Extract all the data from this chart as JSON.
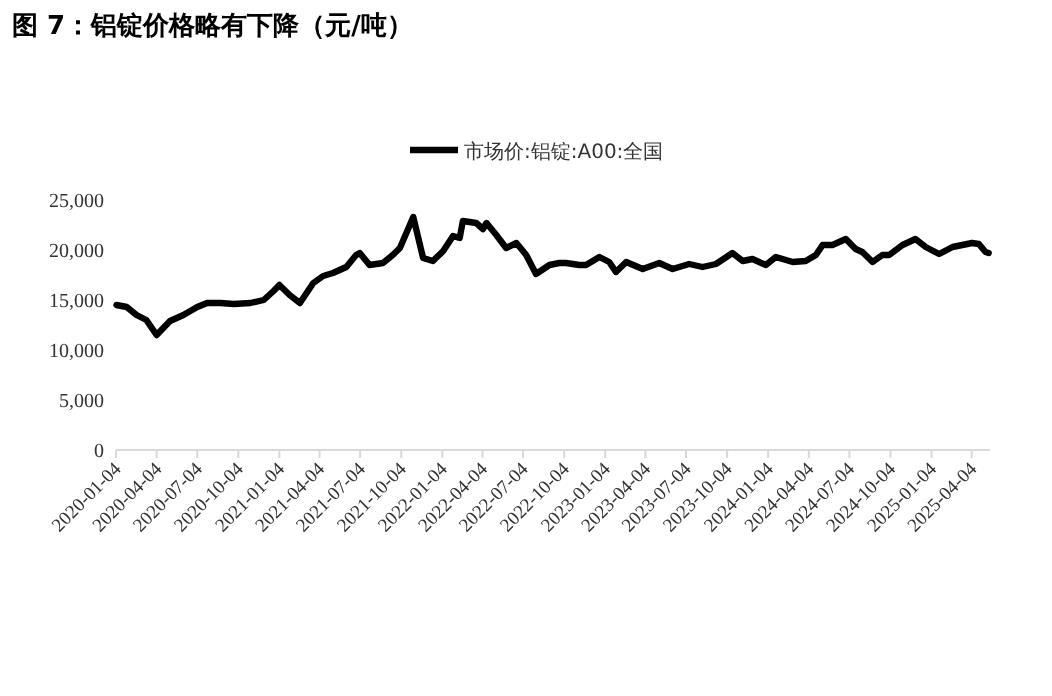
{
  "chart_data": {
    "type": "line",
    "title": "图 7：铝锭价格略有下降（元/吨）",
    "legend": "top",
    "grid": false,
    "marker": "none",
    "line_style": "solid",
    "xlim": [
      "2020-01-04",
      "2025-05-15"
    ],
    "xticks": [
      "2020-01-04",
      "2020-04-04",
      "2020-07-04",
      "2020-10-04",
      "2021-01-04",
      "2021-04-04",
      "2021-07-04",
      "2021-10-04",
      "2022-01-04",
      "2022-04-04",
      "2022-07-04",
      "2022-10-04",
      "2023-01-04",
      "2023-04-04",
      "2023-07-04",
      "2023-10-04",
      "2024-01-04",
      "2024-04-04",
      "2024-07-04",
      "2024-10-04",
      "2025-01-04",
      "2025-04-04"
    ],
    "ylim": [
      0,
      25000
    ],
    "yticks": [
      {
        "value": 0,
        "label": "0"
      },
      {
        "value": 5000,
        "label": "5,000"
      },
      {
        "value": 10000,
        "label": "10,000"
      },
      {
        "value": 15000,
        "label": "15,000"
      },
      {
        "value": 20000,
        "label": "20,000"
      },
      {
        "value": 25000,
        "label": "25,000"
      }
    ],
    "series": [
      {
        "name": "市场价:铝锭:A00:全国",
        "color": "#000000",
        "x": [
          "2020-01-05",
          "2020-01-28",
          "2020-02-19",
          "2020-03-12",
          "2020-04-04",
          "2020-05-04",
          "2020-06-03",
          "2020-07-04",
          "2020-07-26",
          "2020-08-25",
          "2020-09-24",
          "2020-10-31",
          "2020-11-30",
          "2020-12-22",
          "2021-01-04",
          "2021-01-27",
          "2021-02-19",
          "2021-03-06",
          "2021-03-21",
          "2021-04-12",
          "2021-05-04",
          "2021-06-03",
          "2021-06-25",
          "2021-07-03",
          "2021-07-25",
          "2021-08-24",
          "2021-09-15",
          "2021-10-01",
          "2021-10-31",
          "2021-11-22",
          "2021-12-14",
          "2022-01-06",
          "2022-01-28",
          "2022-02-12",
          "2022-02-19",
          "2022-03-21",
          "2022-04-05",
          "2022-04-13",
          "2022-05-05",
          "2022-05-27",
          "2022-06-19",
          "2022-07-11",
          "2022-08-02",
          "2022-09-01",
          "2022-09-23",
          "2022-10-08",
          "2022-11-07",
          "2022-11-22",
          "2022-12-22",
          "2023-01-13",
          "2023-01-28",
          "2023-02-20",
          "2023-03-29",
          "2023-05-05",
          "2023-06-04",
          "2023-07-11",
          "2023-08-10",
          "2023-09-09",
          "2023-10-16",
          "2023-11-08",
          "2023-11-30",
          "2023-12-30",
          "2024-01-21",
          "2024-02-28",
          "2024-03-28",
          "2024-04-20",
          "2024-05-05",
          "2024-05-27",
          "2024-06-26",
          "2024-07-18",
          "2024-08-02",
          "2024-08-25",
          "2024-09-16",
          "2024-10-01",
          "2024-10-31",
          "2024-11-29",
          "2024-12-22",
          "2025-01-21",
          "2025-02-20",
          "2025-04-05",
          "2025-04-20",
          "2025-05-05",
          "2025-05-12"
        ],
        "values": [
          14500,
          14300,
          13500,
          13000,
          11500,
          12900,
          13500,
          14300,
          14700,
          14700,
          14600,
          14700,
          15000,
          15900,
          16500,
          15500,
          14700,
          15700,
          16700,
          17400,
          17700,
          18300,
          19500,
          19700,
          18500,
          18700,
          19500,
          20200,
          23300,
          19200,
          18900,
          19900,
          21400,
          21200,
          22900,
          22700,
          22100,
          22700,
          21500,
          20200,
          20700,
          19500,
          17600,
          18500,
          18700,
          18700,
          18500,
          18500,
          19300,
          18800,
          17800,
          18800,
          18100,
          18700,
          18100,
          18600,
          18300,
          18600,
          19700,
          18900,
          19100,
          18500,
          19300,
          18800,
          18900,
          19500,
          20500,
          20500,
          21100,
          20100,
          19800,
          18800,
          19500,
          19500,
          20500,
          21100,
          20300,
          19600,
          20300,
          20700,
          20600,
          19800,
          19700
        ]
      }
    ]
  }
}
